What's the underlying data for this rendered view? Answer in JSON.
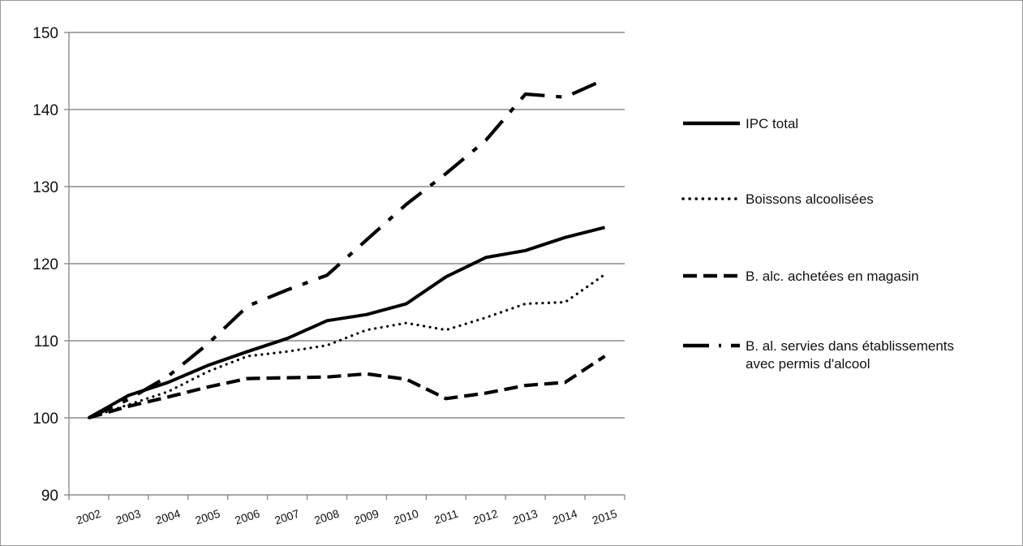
{
  "chart_data": {
    "type": "line",
    "title": "",
    "xlabel": "",
    "ylabel": "",
    "x": [
      "2002",
      "2003",
      "2004",
      "2005",
      "2006",
      "2007",
      "2008",
      "2009",
      "2010",
      "2011",
      "2012",
      "2013",
      "2014",
      "2015"
    ],
    "ylim": [
      90,
      150
    ],
    "yticks": [
      90,
      100,
      110,
      120,
      130,
      140,
      150
    ],
    "grid": "horizontal",
    "legend_position": "right",
    "series": [
      {
        "name": "IPC total",
        "style": "solid",
        "values": [
          100,
          102.9,
          104.6,
          106.8,
          108.6,
          110.3,
          112.6,
          113.4,
          114.8,
          118.3,
          120.8,
          121.7,
          123.4,
          124.7
        ]
      },
      {
        "name": "Boissons alcoolisées",
        "style": "dotted",
        "values": [
          100,
          101.7,
          103.4,
          106.0,
          108.0,
          108.6,
          109.4,
          111.4,
          112.3,
          111.4,
          113.0,
          114.8,
          115.0,
          118.6
        ]
      },
      {
        "name": "B. alc. achetées en magasin",
        "style": "dashed",
        "values": [
          100,
          101.5,
          102.7,
          104.0,
          105.1,
          105.2,
          105.3,
          105.7,
          105.0,
          102.5,
          103.2,
          104.2,
          104.6,
          108.0
        ]
      },
      {
        "name": "B. al. servies dans  établissements avec permis d'alcool",
        "name_lines": [
          "B. al. servies dans  établissements",
          "avec permis d'alcool"
        ],
        "style": "dash-dot",
        "values": [
          100,
          102.4,
          105.4,
          109.6,
          114.5,
          116.6,
          118.5,
          123.1,
          127.7,
          131.7,
          136.0,
          142.0,
          141.6,
          143.9
        ]
      }
    ]
  }
}
